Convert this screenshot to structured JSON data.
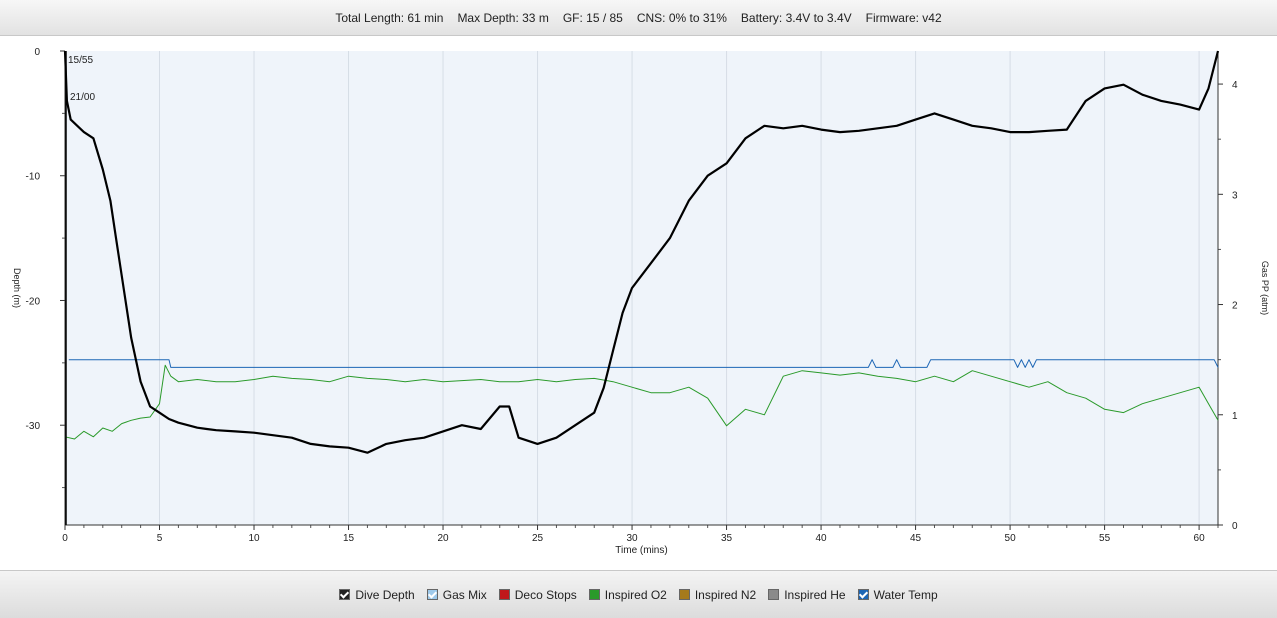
{
  "header": {
    "stats": [
      "Total Length: 61 min",
      "Max Depth: 33 m",
      "GF: 15 / 85",
      "CNS: 0% to 31%",
      "Battery: 3.4V to 3.4V",
      "Firmware: v42"
    ]
  },
  "legend": {
    "items": [
      {
        "label": "Dive Depth",
        "color": "#222222",
        "checked": true
      },
      {
        "label": "Gas Mix",
        "color": "#9ec9ea",
        "checked": true
      },
      {
        "label": "Deco Stops",
        "color": "#c0181b",
        "checked": false
      },
      {
        "label": "Inspired O2",
        "color": "#2a9a2a",
        "checked": false
      },
      {
        "label": "Inspired N2",
        "color": "#a57a1c",
        "checked": false
      },
      {
        "label": "Inspired He",
        "color": "#8a8a8a",
        "checked": false
      },
      {
        "label": "Water Temp",
        "color": "#1d66b5",
        "checked": true
      }
    ]
  },
  "chart_data": {
    "type": "line",
    "xlabel": "Time (mins)",
    "ylabel": "Depth (m)",
    "y2label": "Gas PP (atm)",
    "xlim": [
      0,
      61
    ],
    "ylim": [
      -38,
      0
    ],
    "y2lim": [
      0,
      4.3
    ],
    "xticks": [
      0,
      5,
      10,
      15,
      20,
      25,
      30,
      35,
      40,
      45,
      50,
      55,
      60
    ],
    "yticks": [
      0,
      -10,
      -20,
      -30
    ],
    "y2ticks": [
      0,
      1,
      2,
      3,
      4
    ],
    "grid": true,
    "annotations": [
      "15/55",
      "21/00"
    ],
    "series": [
      {
        "name": "Dive Depth",
        "axis": "left",
        "color": "#000000",
        "x": [
          0,
          0.1,
          0.3,
          1,
          1.5,
          2,
          2.4,
          2.7,
          3,
          3.5,
          4,
          4.5,
          5,
          5.5,
          6,
          6.5,
          7,
          7.5,
          8,
          9,
          10,
          11,
          12,
          13,
          14,
          15,
          16,
          17,
          18,
          19,
          20,
          21,
          22,
          23,
          23.5,
          24,
          25,
          26,
          27,
          28,
          28.5,
          29,
          29.5,
          30,
          31,
          32,
          33,
          34,
          35,
          36,
          37,
          38,
          39,
          40,
          41,
          42,
          43,
          44,
          45,
          46,
          47,
          48,
          49,
          50,
          51,
          52,
          53,
          54,
          55,
          56,
          57,
          58,
          59,
          60,
          60.5,
          61
        ],
        "y": [
          0,
          -4,
          -5.5,
          -6.5,
          -7,
          -9.5,
          -12,
          -15,
          -18,
          -23,
          -26.5,
          -28.5,
          -29,
          -29.5,
          -29.8,
          -30,
          -30.2,
          -30.3,
          -30.4,
          -30.5,
          -30.6,
          -30.8,
          -31,
          -31.5,
          -31.7,
          -31.8,
          -32.2,
          -31.5,
          -31.2,
          -31,
          -30.5,
          -30,
          -30.3,
          -28.5,
          -28.5,
          -31,
          -31.5,
          -31,
          -30,
          -29,
          -27,
          -24,
          -21,
          -19,
          -17,
          -15,
          -12,
          -10,
          -9,
          -7,
          -6,
          -6.2,
          -6,
          -6.3,
          -6.5,
          -6.4,
          -6.2,
          -6,
          -5.5,
          -5,
          -5.5,
          -6,
          -6.2,
          -6.5,
          -6.5,
          -6.4,
          -6.3,
          -4,
          -3,
          -2.7,
          -3.5,
          -4,
          -4.3,
          -4.7,
          -3,
          0
        ]
      },
      {
        "name": "Inspired O2",
        "axis": "right",
        "color": "#2a9a2a",
        "x": [
          0,
          0.5,
          1,
          1.5,
          2,
          2.5,
          3,
          3.5,
          4,
          4.5,
          5,
          5.3,
          5.6,
          6,
          7,
          8,
          9,
          10,
          11,
          12,
          13,
          14,
          15,
          16,
          17,
          18,
          19,
          20,
          21,
          22,
          23,
          24,
          25,
          26,
          27,
          28,
          29,
          30,
          31,
          32,
          33,
          34,
          35,
          36,
          37,
          38,
          39,
          40,
          41,
          42,
          43,
          44,
          45,
          46,
          47,
          48,
          49,
          50,
          51,
          52,
          53,
          54,
          55,
          56,
          57,
          58,
          59,
          60,
          60.5,
          61
        ],
        "y": [
          0.8,
          0.78,
          0.85,
          0.8,
          0.88,
          0.85,
          0.92,
          0.95,
          0.97,
          0.98,
          1.1,
          1.45,
          1.35,
          1.3,
          1.32,
          1.3,
          1.3,
          1.32,
          1.35,
          1.33,
          1.32,
          1.3,
          1.35,
          1.33,
          1.32,
          1.3,
          1.32,
          1.3,
          1.31,
          1.32,
          1.3,
          1.3,
          1.32,
          1.3,
          1.32,
          1.33,
          1.3,
          1.25,
          1.2,
          1.2,
          1.25,
          1.15,
          0.9,
          1.05,
          1.0,
          1.35,
          1.4,
          1.38,
          1.36,
          1.38,
          1.35,
          1.33,
          1.3,
          1.35,
          1.3,
          1.4,
          1.35,
          1.3,
          1.25,
          1.3,
          1.2,
          1.15,
          1.05,
          1.02,
          1.1,
          1.15,
          1.2,
          1.25,
          1.1,
          0.95
        ]
      },
      {
        "name": "Water Temp",
        "axis": "right",
        "color": "#1d66b5",
        "x": [
          0.2,
          5.5,
          5.6,
          42.5,
          42.7,
          42.9,
          43.8,
          44.0,
          44.2,
          45.6,
          45.8,
          50.2,
          50.4,
          50.6,
          50.8,
          51.0,
          51.2,
          51.4,
          51.6,
          60.8,
          61
        ],
        "y": [
          1.5,
          1.5,
          1.43,
          1.43,
          1.5,
          1.43,
          1.43,
          1.5,
          1.43,
          1.43,
          1.5,
          1.5,
          1.43,
          1.5,
          1.43,
          1.5,
          1.43,
          1.5,
          1.5,
          1.5,
          1.43
        ]
      }
    ]
  }
}
